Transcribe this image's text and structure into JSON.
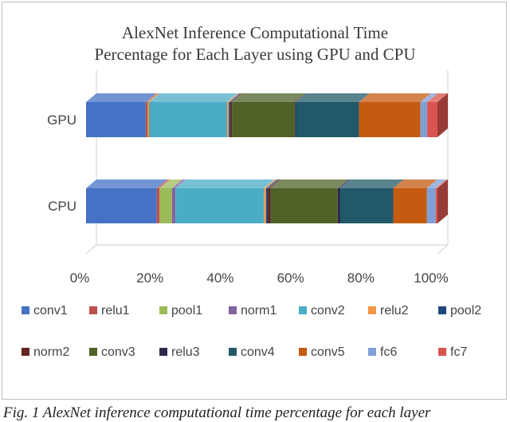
{
  "chart_data": {
    "type": "bar",
    "orientation": "horizontal-stacked-3d",
    "title": "AlexNet Inference Computational Time\nPercentage for Each Layer using GPU and CPU",
    "categories": [
      "GPU",
      "CPU"
    ],
    "xticks": [
      "0%",
      "20%",
      "40%",
      "60%",
      "80%",
      "100%"
    ],
    "xlim": [
      0,
      100
    ],
    "grid": false,
    "legend_position": "bottom",
    "series": [
      {
        "name": "conv1",
        "color": "#4472c4",
        "values": [
          17.5,
          20.0
        ]
      },
      {
        "name": "relu1",
        "color": "#c0504d",
        "values": [
          0.6,
          0.8
        ]
      },
      {
        "name": "pool1",
        "color": "#9bbb59",
        "values": [
          0.5,
          3.5
        ]
      },
      {
        "name": "norm1",
        "color": "#8064a2",
        "values": [
          0.3,
          1.0
        ]
      },
      {
        "name": "conv2",
        "color": "#4bacc6",
        "values": [
          22.5,
          25.0
        ]
      },
      {
        "name": "relu2",
        "color": "#f79646",
        "values": [
          0.5,
          0.6
        ]
      },
      {
        "name": "pool2",
        "color": "#1f497d",
        "values": [
          0.5,
          0.6
        ]
      },
      {
        "name": "norm2",
        "color": "#632423",
        "values": [
          0.4,
          0.7
        ]
      },
      {
        "name": "conv3",
        "color": "#4f6228",
        "values": [
          18.5,
          19.0
        ]
      },
      {
        "name": "relu3",
        "color": "#2e2a4f",
        "values": [
          0.3,
          0.7
        ]
      },
      {
        "name": "conv4",
        "color": "#215968",
        "values": [
          18.5,
          15.0
        ]
      },
      {
        "name": "conv5",
        "color": "#c55a11",
        "values": [
          18.0,
          9.5
        ]
      },
      {
        "name": "fc6",
        "color": "#7f9fd6",
        "values": [
          2.0,
          2.5
        ]
      },
      {
        "name": "fc7",
        "color": "#d9534f",
        "values": [
          3.0,
          0.5
        ]
      }
    ]
  },
  "caption": "Fig. 1 AlexNet inference computational time percentage for each layer"
}
